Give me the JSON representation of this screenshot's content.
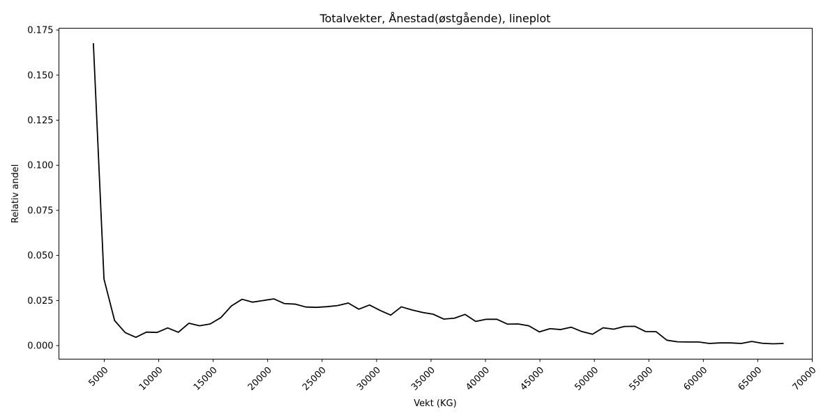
{
  "chart_data": {
    "type": "line",
    "title": "Totalvekter, Ånestad(østgående), lineplot",
    "xlabel": "Vekt (KG)",
    "ylabel": "Relativ andel",
    "xlim": [
      839,
      70000
    ],
    "ylim": [
      -0.0075,
      0.176
    ],
    "xticks": [
      5000,
      10000,
      15000,
      20000,
      25000,
      30000,
      35000,
      40000,
      45000,
      50000,
      55000,
      60000,
      65000,
      70000
    ],
    "yticks": [
      0.0,
      0.025,
      0.05,
      0.075,
      0.1,
      0.125,
      0.15,
      0.175
    ],
    "ytick_labels": [
      "0.000",
      "0.025",
      "0.050",
      "0.075",
      "0.100",
      "0.125",
      "0.150",
      "0.175"
    ],
    "grid": false,
    "legend": "none",
    "series": [
      {
        "color": "#000000",
        "x": [
          4000,
          4975,
          5950,
          6925,
          7900,
          8875,
          9850,
          10825,
          11800,
          12775,
          13750,
          14725,
          15700,
          16675,
          17650,
          18625,
          19600,
          20575,
          21550,
          22525,
          23500,
          24475,
          25450,
          26425,
          27400,
          28375,
          29350,
          30325,
          31300,
          32275,
          33250,
          34225,
          35200,
          36175,
          37150,
          38125,
          39100,
          40075,
          41050,
          42025,
          43000,
          43975,
          44950,
          45925,
          46900,
          47875,
          48850,
          49825,
          50800,
          51775,
          52750,
          53725,
          54700,
          55675,
          56650,
          57625,
          58600,
          59575,
          60550,
          61525,
          62500,
          63475,
          64450,
          65425,
          66400,
          67375
        ],
        "y": [
          0.1677,
          0.0369,
          0.0139,
          0.0072,
          0.0046,
          0.0075,
          0.0073,
          0.0098,
          0.0074,
          0.0124,
          0.011,
          0.012,
          0.0155,
          0.022,
          0.0257,
          0.0241,
          0.025,
          0.0259,
          0.0233,
          0.023,
          0.0214,
          0.0212,
          0.0216,
          0.0222,
          0.0236,
          0.0202,
          0.0225,
          0.0195,
          0.0169,
          0.0215,
          0.0198,
          0.0184,
          0.0174,
          0.0147,
          0.0152,
          0.0173,
          0.0134,
          0.0146,
          0.0146,
          0.0119,
          0.012,
          0.011,
          0.0076,
          0.0094,
          0.0089,
          0.0102,
          0.0078,
          0.0063,
          0.0099,
          0.0091,
          0.0106,
          0.0107,
          0.0078,
          0.0077,
          0.003,
          0.0021,
          0.002,
          0.002,
          0.0012,
          0.0015,
          0.0015,
          0.0012,
          0.0023,
          0.0013,
          0.001,
          0.0012
        ]
      }
    ]
  }
}
